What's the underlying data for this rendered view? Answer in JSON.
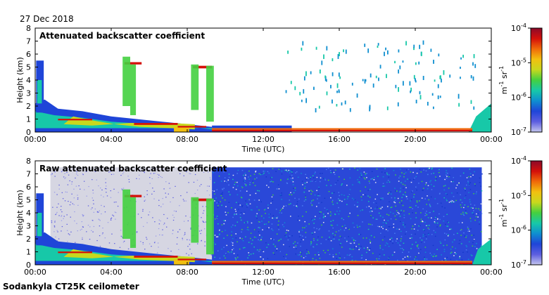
{
  "date_label": "27 Dec 2018",
  "footer_label": "Sodankyla CT25K ceilometer",
  "chart_data": [
    {
      "type": "heatmap",
      "title": "Attenuated backscatter coefficient",
      "xlabel": "Time (UTC)",
      "ylabel": "Height (km)",
      "xticks": [
        "00:00",
        "04:00",
        "08:00",
        "12:00",
        "16:00",
        "20:00",
        "00:00"
      ],
      "yticks": [
        "0",
        "1",
        "2",
        "3",
        "4",
        "5",
        "6",
        "7",
        "8"
      ],
      "xlim_hours": [
        0,
        24
      ],
      "ylim_km": [
        0,
        8
      ],
      "colorbar": {
        "unit_base": "m",
        "unit_sup1": "-1",
        "unit_mid": " sr",
        "unit_sup2": "-1",
        "scale": "log",
        "range": [
          1e-07,
          0.0001
        ],
        "ticks": [
          {
            "base": "10",
            "exp": "-4",
            "value": 0.0001
          },
          {
            "base": "10",
            "exp": "-5",
            "value": 1e-05
          },
          {
            "base": "10",
            "exp": "-6",
            "value": 1e-06
          },
          {
            "base": "10",
            "exp": "-7",
            "value": 1e-07
          }
        ]
      }
    },
    {
      "type": "heatmap",
      "title": "Raw attenuated backscatter coefficient",
      "xlabel": "Time (UTC)",
      "ylabel": "Height (km)",
      "xticks": [
        "00:00",
        "04:00",
        "08:00",
        "12:00",
        "16:00",
        "20:00",
        "00:00"
      ],
      "yticks": [
        "0",
        "1",
        "2",
        "3",
        "4",
        "5",
        "6",
        "7",
        "8"
      ],
      "xlim_hours": [
        0,
        24
      ],
      "ylim_km": [
        0,
        8
      ],
      "colorbar": {
        "unit_base": "m",
        "unit_sup1": "-1",
        "unit_mid": " sr",
        "unit_sup2": "-1",
        "scale": "log",
        "range": [
          1e-07,
          0.0001
        ],
        "ticks": [
          {
            "base": "10",
            "exp": "-4",
            "value": 0.0001
          },
          {
            "base": "10",
            "exp": "-5",
            "value": 1e-05
          },
          {
            "base": "10",
            "exp": "-6",
            "value": 1e-06
          },
          {
            "base": "10",
            "exp": "-7",
            "value": 1e-07
          }
        ]
      }
    }
  ]
}
